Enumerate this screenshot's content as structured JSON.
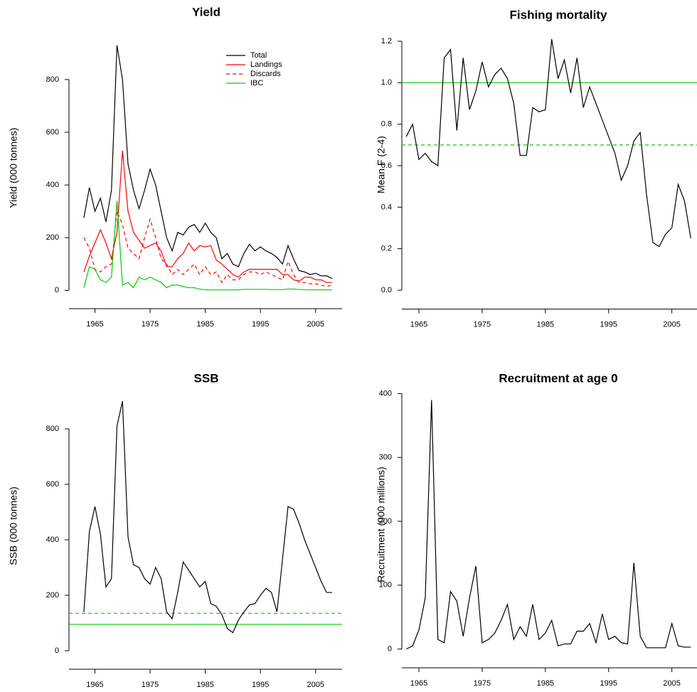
{
  "chart_data": [
    {
      "type": "line",
      "title": "Yield",
      "ylabel": "Yield (000 tonnes)",
      "x": [
        1963,
        1964,
        1965,
        1966,
        1967,
        1968,
        1969,
        1970,
        1971,
        1972,
        1973,
        1974,
        1975,
        1976,
        1977,
        1978,
        1979,
        1980,
        1981,
        1982,
        1983,
        1984,
        1985,
        1986,
        1987,
        1988,
        1989,
        1990,
        1991,
        1992,
        1993,
        1994,
        1995,
        1996,
        1997,
        1998,
        1999,
        2000,
        2001,
        2002,
        2003,
        2004,
        2005,
        2006,
        2007,
        2008
      ],
      "series": [
        {
          "name": "Total",
          "color": "#000000",
          "dash": false,
          "values": [
            275,
            390,
            300,
            350,
            260,
            380,
            930,
            800,
            480,
            380,
            310,
            380,
            460,
            400,
            300,
            200,
            150,
            220,
            210,
            240,
            250,
            220,
            255,
            220,
            200,
            120,
            140,
            100,
            90,
            140,
            175,
            150,
            165,
            150,
            140,
            125,
            100,
            170,
            120,
            75,
            70,
            60,
            65,
            55,
            55,
            45
          ]
        },
        {
          "name": "Landings",
          "color": "#ff0000",
          "dash": false,
          "values": [
            70,
            130,
            180,
            230,
            180,
            120,
            220,
            530,
            300,
            220,
            190,
            160,
            170,
            180,
            150,
            90,
            90,
            120,
            140,
            180,
            150,
            170,
            165,
            170,
            115,
            100,
            80,
            60,
            50,
            70,
            80,
            80,
            80,
            80,
            80,
            80,
            60,
            60,
            40,
            35,
            50,
            50,
            40,
            40,
            30,
            30
          ]
        },
        {
          "name": "Discards",
          "color": "#ff0000",
          "dash": true,
          "values": [
            200,
            160,
            80,
            70,
            90,
            100,
            300,
            250,
            160,
            140,
            120,
            200,
            270,
            200,
            120,
            100,
            60,
            80,
            60,
            80,
            100,
            60,
            90,
            60,
            70,
            30,
            60,
            40,
            40,
            60,
            70,
            70,
            60,
            70,
            60,
            50,
            40,
            110,
            60,
            30,
            30,
            25,
            25,
            20,
            15,
            20
          ]
        },
        {
          "name": "IBC",
          "color": "#00cd00",
          "dash": false,
          "values": [
            10,
            90,
            80,
            40,
            30,
            50,
            340,
            20,
            30,
            10,
            50,
            40,
            50,
            40,
            30,
            10,
            20,
            20,
            15,
            10,
            10,
            5,
            2,
            2,
            2,
            2,
            2,
            2,
            2,
            4,
            4,
            4,
            4,
            4,
            3,
            3,
            3,
            5,
            5,
            3,
            3,
            2,
            2,
            2,
            2,
            2
          ]
        }
      ],
      "legend": "top-right",
      "xlim": [
        1960.3,
        2009.8
      ],
      "xticks": [
        1965,
        1975,
        1985,
        1995,
        2005
      ],
      "ylim": [
        -37,
        967
      ],
      "yticks": [
        0,
        200,
        400,
        600,
        800
      ]
    },
    {
      "type": "line",
      "title": "Fishing mortality",
      "ylabel": "Mean F (2-4)",
      "x": [
        1963,
        1964,
        1965,
        1966,
        1967,
        1968,
        1969,
        1970,
        1971,
        1972,
        1973,
        1974,
        1975,
        1976,
        1977,
        1978,
        1979,
        1980,
        1981,
        1982,
        1983,
        1984,
        1985,
        1986,
        1987,
        1988,
        1989,
        1990,
        1991,
        1992,
        1993,
        1994,
        1995,
        1996,
        1997,
        1998,
        1999,
        2000,
        2001,
        2002,
        2003,
        2004,
        2005,
        2006,
        2007,
        2008
      ],
      "series": [
        {
          "color": "#000000",
          "dash": false,
          "values": [
            0.74,
            0.8,
            0.63,
            0.66,
            0.62,
            0.6,
            1.12,
            1.16,
            0.77,
            1.12,
            0.87,
            0.96,
            1.1,
            0.98,
            1.04,
            1.07,
            1.02,
            0.9,
            0.65,
            0.65,
            0.88,
            0.86,
            0.87,
            1.21,
            1.02,
            1.11,
            0.95,
            1.12,
            0.88,
            0.98,
            0.9,
            0.82,
            0.74,
            0.66,
            0.53,
            0.6,
            0.72,
            0.76,
            0.46,
            0.23,
            0.21,
            0.27,
            0.3,
            0.51,
            0.43,
            0.25
          ]
        }
      ],
      "hlines": [
        {
          "value": 1.0,
          "color": "#00cd00",
          "dash": false
        },
        {
          "value": 0.7,
          "color": "#00cd00",
          "dash": true
        }
      ],
      "xlim": [
        1962.3,
        2009.2
      ],
      "xticks": [
        1965,
        1975,
        1985,
        1995,
        2005
      ],
      "ylim": [
        -0.05,
        1.26
      ],
      "yticks": [
        {
          "value": 0,
          "label": "0.0"
        },
        0.2,
        0.4,
        0.6,
        0.8,
        {
          "value": 1,
          "label": "1.0"
        },
        1.2
      ]
    },
    {
      "type": "line",
      "title": "SSB",
      "ylabel": "SSB (000 tonnes)",
      "x": [
        1963,
        1964,
        1965,
        1966,
        1967,
        1968,
        1969,
        1970,
        1971,
        1972,
        1973,
        1974,
        1975,
        1976,
        1977,
        1978,
        1979,
        1980,
        1981,
        1982,
        1983,
        1984,
        1985,
        1986,
        1987,
        1988,
        1989,
        1990,
        1991,
        1992,
        1993,
        1994,
        1995,
        1996,
        1997,
        1998,
        1999,
        2000,
        2001,
        2002,
        2003,
        2004,
        2005,
        2006,
        2007,
        2008
      ],
      "series": [
        {
          "color": "#000000",
          "dash": false,
          "values": [
            140,
            430,
            520,
            420,
            230,
            260,
            810,
            900,
            410,
            310,
            300,
            260,
            240,
            300,
            260,
            140,
            115,
            210,
            320,
            290,
            260,
            230,
            250,
            170,
            160,
            130,
            80,
            65,
            110,
            140,
            165,
            170,
            200,
            225,
            210,
            140,
            330,
            520,
            510,
            460,
            400,
            350,
            300,
            250,
            210,
            210
          ]
        }
      ],
      "hlines": [
        {
          "value": 95,
          "color": "#00cd00",
          "dash": false
        },
        {
          "value": 135,
          "color": "#00cd00",
          "dash": true
        }
      ],
      "xlim": [
        1960.3,
        2009.8
      ],
      "xticks": [
        1965,
        1975,
        1985,
        1995,
        2005
      ],
      "ylim": [
        -36,
        936
      ],
      "yticks": [
        0,
        200,
        400,
        600,
        800
      ]
    },
    {
      "type": "line",
      "title": "Recruitment at age 0",
      "ylabel": "Recruitment (000 millions)",
      "x": [
        1963,
        1964,
        1965,
        1966,
        1967,
        1968,
        1969,
        1970,
        1971,
        1972,
        1973,
        1974,
        1975,
        1976,
        1977,
        1978,
        1979,
        1980,
        1981,
        1982,
        1983,
        1984,
        1985,
        1986,
        1987,
        1988,
        1989,
        1990,
        1991,
        1992,
        1993,
        1994,
        1995,
        1996,
        1997,
        1998,
        1999,
        2000,
        2001,
        2002,
        2003,
        2004,
        2005,
        2006,
        2007,
        2008
      ],
      "series": [
        {
          "color": "#000000",
          "dash": false,
          "values": [
            0,
            5,
            30,
            80,
            390,
            15,
            10,
            90,
            75,
            20,
            80,
            130,
            10,
            15,
            25,
            45,
            70,
            15,
            35,
            20,
            70,
            15,
            25,
            45,
            5,
            8,
            8,
            28,
            28,
            40,
            10,
            55,
            15,
            20,
            10,
            8,
            135,
            20,
            2,
            2,
            2,
            2,
            40,
            5,
            3,
            3
          ]
        }
      ],
      "xlim": [
        1962.3,
        2009.2
      ],
      "xticks": [
        1965,
        1975,
        1985,
        1995,
        2005
      ],
      "ylim": [
        -16,
        406
      ],
      "yticks": [
        0,
        100,
        200,
        300,
        400
      ]
    }
  ]
}
